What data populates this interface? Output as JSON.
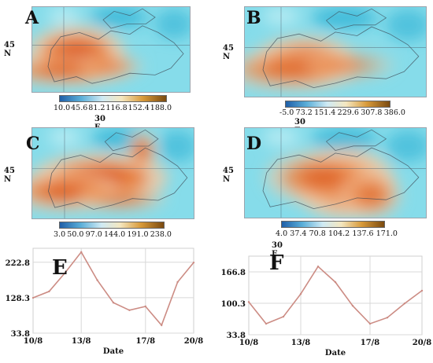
{
  "colors": {
    "sea": "#86dcea",
    "sea_deep": "#2fb3d6",
    "land_mid": "#f2c9a5",
    "hot": "#e9772e",
    "hotter": "#d9561e",
    "series_line": "#cc8c84",
    "grid": "#d8d8d8",
    "plot_border": "#cfcfcf"
  },
  "panels": [
    {
      "letter": "A",
      "lat_label": "45 N",
      "lon_label": "30 E",
      "colorbar_ticks": [
        "10.0",
        "45.6",
        "81.2",
        "116.8",
        "152.4",
        "188.0"
      ],
      "hotspot": "west-center"
    },
    {
      "letter": "B",
      "lat_label": "45 N",
      "lon_label": "30 E",
      "colorbar_ticks": [
        "-5.0",
        "73.2",
        "151.4",
        "229.6",
        "307.8",
        "386.0"
      ],
      "hotspot": "center-west"
    },
    {
      "letter": "C",
      "lat_label": "45 N",
      "lon_label": "30 E",
      "colorbar_ticks": [
        "3.0",
        "50.0",
        "97.0",
        "144.0",
        "191.0",
        "238.0"
      ],
      "hotspot": "broad-center"
    },
    {
      "letter": "D",
      "lat_label": "45 N",
      "lon_label": "30 E",
      "colorbar_ticks": [
        "4.0",
        "37.4",
        "70.8",
        "104.2",
        "137.6",
        "171.0"
      ],
      "hotspot": "center-east"
    }
  ],
  "chart_data": [
    {
      "type": "line",
      "letter": "E",
      "xlabel": "Date",
      "x_tick_labels": [
        "10/8",
        "13/8",
        "17/8",
        "20/8"
      ],
      "y_tick_labels": [
        "33.8",
        "128.3",
        "222.8"
      ],
      "ylim": [
        33.8,
        260
      ],
      "x_index": [
        0,
        1,
        2,
        3,
        4,
        5,
        6,
        7,
        8,
        9,
        10
      ],
      "values": [
        128,
        145,
        195,
        250,
        175,
        115,
        95,
        105,
        55,
        170,
        222
      ],
      "grid": true
    },
    {
      "type": "line",
      "letter": "F",
      "xlabel": "Date",
      "x_tick_labels": [
        "10/8",
        "13/8",
        "17/8",
        "20/8"
      ],
      "y_tick_labels": [
        "33.8",
        "100.3",
        "166.8"
      ],
      "ylim": [
        33.8,
        200
      ],
      "x_index": [
        0,
        1,
        2,
        3,
        4,
        5,
        6,
        7,
        8,
        9,
        10
      ],
      "values": [
        103,
        57,
        72,
        120,
        178,
        145,
        95,
        57,
        70,
        100,
        127
      ],
      "grid": true
    }
  ]
}
